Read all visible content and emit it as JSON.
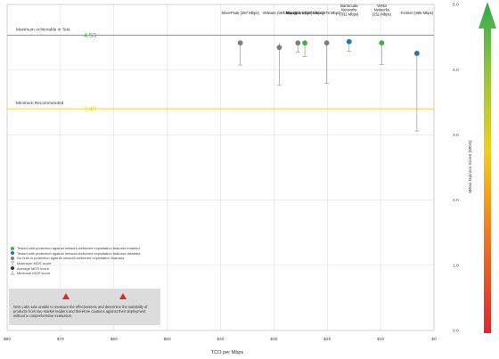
{
  "chart_data": {
    "type": "scatter",
    "title": "",
    "xlabel": "TCO per Mbps",
    "ylabel": "Mean Opinion Score (MOS)",
    "xlim": [
      80,
      0
    ],
    "ylim": [
      0,
      5
    ],
    "x_ticks": [
      "$80",
      "$70",
      "$60",
      "$50",
      "$40",
      "$30",
      "$20",
      "$10",
      "$0"
    ],
    "x_tick_values": [
      80,
      70,
      60,
      50,
      40,
      30,
      20,
      10,
      0
    ],
    "y_ticks": [
      "0.0",
      "1.0",
      "2.0",
      "3.0",
      "4.0",
      "5.0"
    ],
    "y_tick_values": [
      0,
      1,
      2,
      3,
      4,
      5
    ],
    "grid": true,
    "reference_lines": [
      {
        "name": "Maximum Achievable in Test",
        "value": 4.53,
        "label": "4.53",
        "color": "#3fb34a"
      },
      {
        "name": "Minimum Recommended",
        "value": 3.4,
        "label": "3.40",
        "color": "#e6d92c"
      }
    ],
    "points": [
      {
        "name": "SilverPeak",
        "sub": "(387 Mbps)",
        "x": 36.3,
        "mean": 4.41,
        "max": 4.41,
        "min": 4.07,
        "cat": "disabled"
      },
      {
        "name": "VMware",
        "sub": "(967 Mbps)",
        "x": 29.0,
        "mean": 4.34,
        "max": 4.41,
        "min": 3.76,
        "cat": "disabled"
      },
      {
        "name": "Cisco",
        "sub": "(301 Mbps)",
        "x": 25.5,
        "mean": 4.41,
        "max": 4.41,
        "min": 4.27,
        "cat": "disabled"
      },
      {
        "name": "Forcepoint",
        "sub": "(927 Mbps)",
        "x": 24.2,
        "mean": 4.41,
        "max": 4.41,
        "min": 4.2,
        "cat": "enabled"
      },
      {
        "name": "Citrix",
        "sub": "(879 Mbps)",
        "x": 20.1,
        "mean": 4.41,
        "max": 4.41,
        "min": 3.79,
        "cat": "disabled"
      },
      {
        "name": "Barracuda Networks",
        "sub": "(332 Mbps)",
        "x": 15.9,
        "mean": 4.43,
        "max": 4.43,
        "min": 4.28,
        "cat": "blue"
      },
      {
        "name": "Versa Networks",
        "sub": "(251 Mbps)",
        "x": 9.8,
        "mean": 4.41,
        "max": 4.41,
        "min": 4.08,
        "cat": "enabled"
      },
      {
        "name": "Fortinet",
        "sub": "(985 Mbps)",
        "x": 3.2,
        "mean": 4.25,
        "max": 4.25,
        "min": 3.06,
        "cat": "blue"
      }
    ],
    "legend_placement": "bottom-left",
    "colors": {
      "enabled": "#3fb34a",
      "blue": "#1f77b4",
      "disabled": "#7f7f7f",
      "whisker": "#9a9a9a",
      "grid": "#d9d9d9"
    }
  },
  "legend": {
    "items": [
      {
        "label": "Tested with protection against network-delivered exploitation features enabled",
        "color": "#3fb34a",
        "kind": "dot"
      },
      {
        "label": "Tested with protection against network-delivered exploitation features disabled",
        "color": "#1f77b4",
        "kind": "dot"
      },
      {
        "label": "No built-in protection against network-delivered exploitation features",
        "color": "#7f7f7f",
        "kind": "dot"
      },
      {
        "label": "Maximum MOS score",
        "color": "#9a9a9a",
        "kind": "tick"
      },
      {
        "label": "Average MOS score",
        "color": "#333333",
        "kind": "dot"
      },
      {
        "label": "Minimum MOS score",
        "color": "#9a9a9a",
        "kind": "whisker"
      }
    ]
  },
  "note": {
    "text": "NSS Labs was unable to measure the effectiveness and determine the suitability of products from two market leaders and therefore cautions against their deployment without a comprehensive evaluation."
  }
}
